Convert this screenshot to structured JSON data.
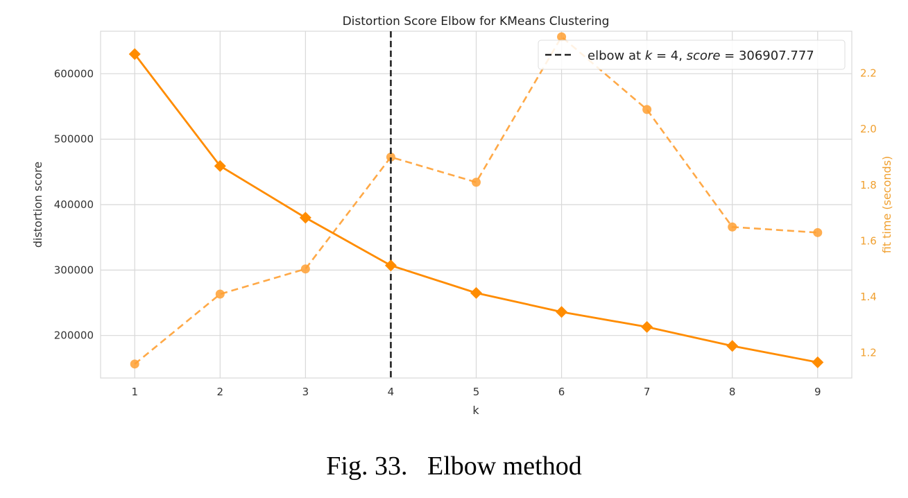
{
  "caption": {
    "label": "Fig. 33.",
    "text": "Elbow method"
  },
  "chart_data": {
    "type": "line",
    "title": "Distortion Score Elbow for KMeans Clustering",
    "xlabel": "k",
    "ylabel": "distortion score",
    "y2label": "fit time (seconds)",
    "x": [
      1,
      2,
      3,
      4,
      5,
      6,
      7,
      8,
      9
    ],
    "xlim": [
      0.6,
      9.4
    ],
    "ylim": [
      135000,
      665000
    ],
    "y2lim": [
      1.11,
      2.35
    ],
    "yticks": [
      200000,
      300000,
      400000,
      500000,
      600000
    ],
    "y2ticks": [
      1.2,
      1.4,
      1.6,
      1.8,
      2.0,
      2.2
    ],
    "series": [
      {
        "name": "distortion score",
        "axis": "left",
        "style": "solid",
        "marker": "diamond",
        "values": [
          630000,
          459000,
          380000,
          307000,
          265000,
          236000,
          213000,
          184000,
          159000
        ]
      },
      {
        "name": "fit time (seconds)",
        "axis": "right",
        "style": "dashed",
        "marker": "circle",
        "values": [
          1.16,
          1.41,
          1.5,
          1.9,
          1.81,
          2.33,
          2.07,
          1.65,
          1.63
        ]
      }
    ],
    "elbow": {
      "k": 4,
      "score": "306907.777",
      "legend_prefix": "elbow at ",
      "k_symbol": "k",
      "eq": " = ",
      "k_text": "4",
      "sep": ", ",
      "score_symbol": "score",
      "score_eq": " = "
    },
    "legend_position": "top-right",
    "grid": true,
    "colors": {
      "score_line": "#ff8c00",
      "time_line": "#ffa033",
      "elbow_line": "#222222",
      "grid": "#d8d8d8",
      "axis_text": "#333333",
      "right_axis_text": "#f0a030"
    }
  }
}
